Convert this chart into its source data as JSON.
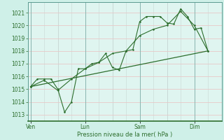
{
  "background_color": "#cff0e8",
  "plot_bg_color": "#dff5f0",
  "grid_color": "#e8c8c8",
  "vgrid_color": "#c8d8d5",
  "line_color": "#2d6e2d",
  "text_color": "#2d6e2d",
  "xlabel": "Pression niveau de la mer( hPa )",
  "ylim": [
    1012.5,
    1021.8
  ],
  "yticks": [
    1013,
    1014,
    1015,
    1016,
    1017,
    1018,
    1019,
    1020,
    1021
  ],
  "day_labels": [
    "Ven",
    "Lun",
    "Sam",
    "Dim"
  ],
  "day_positions": [
    0,
    2,
    4,
    6
  ],
  "xlim": [
    -0.1,
    7.0
  ],
  "series1_x": [
    0,
    0.25,
    0.5,
    0.75,
    1.0,
    1.25,
    1.5,
    1.75,
    2.0,
    2.25,
    2.5,
    2.75,
    3.0,
    3.25,
    3.5,
    3.75,
    4.0,
    4.25,
    4.5,
    4.75,
    5.0,
    5.25,
    5.5,
    5.75,
    6.0,
    6.25,
    6.5
  ],
  "series1_y": [
    1015.2,
    1015.8,
    1015.8,
    1015.8,
    1015.0,
    1013.2,
    1014.0,
    1016.6,
    1016.6,
    1017.0,
    1017.1,
    1017.8,
    1016.7,
    1016.5,
    1018.0,
    1018.1,
    1020.3,
    1020.7,
    1020.7,
    1020.7,
    1020.2,
    1020.1,
    1021.3,
    1020.7,
    1019.7,
    1019.8,
    1018.0
  ],
  "series2_x": [
    0,
    0.5,
    1.0,
    1.5,
    2.0,
    2.5,
    3.0,
    3.5,
    4.0,
    4.5,
    5.0,
    5.5,
    6.0,
    6.5
  ],
  "series2_y": [
    1015.2,
    1015.7,
    1014.9,
    1015.8,
    1016.6,
    1017.1,
    1017.8,
    1018.0,
    1019.2,
    1019.7,
    1020.0,
    1021.1,
    1020.0,
    1018.0
  ],
  "series3_x": [
    0,
    6.5
  ],
  "series3_y": [
    1015.2,
    1018.0
  ]
}
